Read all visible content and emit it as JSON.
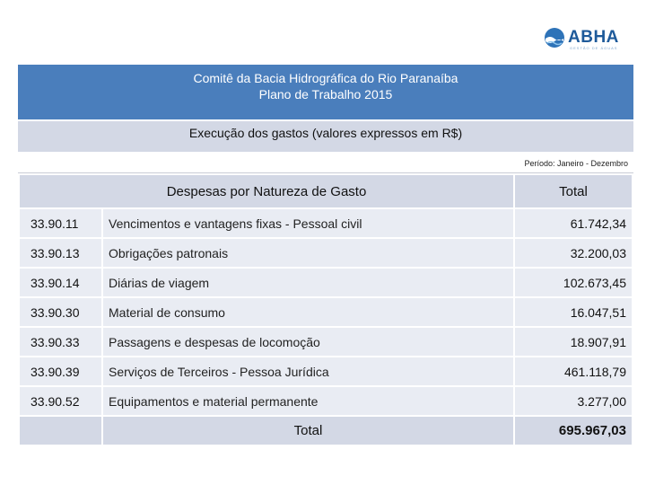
{
  "logo": {
    "name": "ABHA",
    "tagline": "GESTÃO DE ÁGUAS"
  },
  "header": {
    "line1": "Comitê da Bacia Hidrográfica do Rio Paranaíba",
    "line2": "Plano de Trabalho 2015",
    "subtitle": "Execução dos gastos (valores expressos em R$)",
    "period": "Período: Janeiro - Dezembro"
  },
  "table": {
    "col_desc": "Despesas por Natureza de Gasto",
    "col_total": "Total",
    "rows": [
      {
        "code": "33.90.11",
        "desc": "Vencimentos e vantagens fixas - Pessoal civil",
        "value": "61.742,34"
      },
      {
        "code": "33.90.13",
        "desc": "Obrigações patronais",
        "value": "32.200,03"
      },
      {
        "code": "33.90.14",
        "desc": "Diárias de viagem",
        "value": "102.673,45"
      },
      {
        "code": "33.90.30",
        "desc": "Material de consumo",
        "value": "16.047,51"
      },
      {
        "code": "33.90.33",
        "desc": "Passagens e despesas de locomoção",
        "value": "18.907,91"
      },
      {
        "code": "33.90.39",
        "desc": "Serviços de Terceiros - Pessoa Jurídica",
        "value": "461.118,79"
      },
      {
        "code": "33.90.52",
        "desc": "Equipamentos e material permanente",
        "value": "3.277,00"
      }
    ],
    "total_label": "Total",
    "total_value": "695.967,03"
  },
  "colors": {
    "header_blue": "#4a7ebc",
    "band_gray": "#d3d8e5",
    "row_bg": "#e9ecf3",
    "logo_blue": "#1e5a9a"
  }
}
